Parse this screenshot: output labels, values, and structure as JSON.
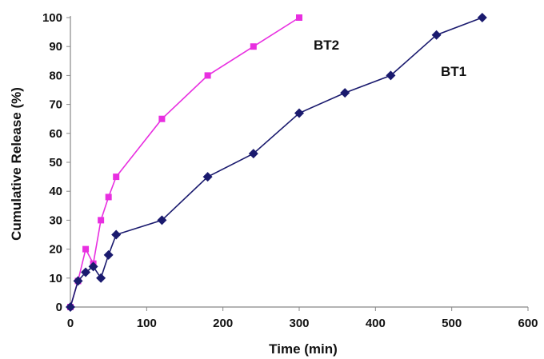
{
  "chart_data": {
    "type": "line",
    "xlabel": "Time (min)",
    "ylabel": "Cumulative Release (%)",
    "xlim": [
      0,
      600
    ],
    "ylim": [
      0,
      100
    ],
    "xticks": [
      "0",
      "100",
      "200",
      "300",
      "400",
      "500",
      "600"
    ],
    "yticks": [
      "0",
      "10",
      "20",
      "30",
      "40",
      "50",
      "60",
      "70",
      "80",
      "90",
      "100"
    ],
    "grid": false,
    "series": [
      {
        "name": "BT1",
        "color": "#1a1a6e",
        "marker": "diamond",
        "x": [
          0,
          10,
          20,
          30,
          40,
          50,
          60,
          120,
          180,
          240,
          300,
          360,
          420,
          480,
          540
        ],
        "y": [
          0,
          9,
          12,
          14,
          10,
          18,
          25,
          30,
          45,
          53,
          67,
          74,
          80,
          94,
          100
        ]
      },
      {
        "name": "BT2",
        "color": "#e82fe0",
        "marker": "square",
        "x": [
          0,
          10,
          20,
          30,
          40,
          50,
          60,
          120,
          180,
          240,
          300
        ],
        "y": [
          0,
          9,
          20,
          15,
          30,
          38,
          45,
          65,
          80,
          90,
          100
        ]
      }
    ]
  }
}
